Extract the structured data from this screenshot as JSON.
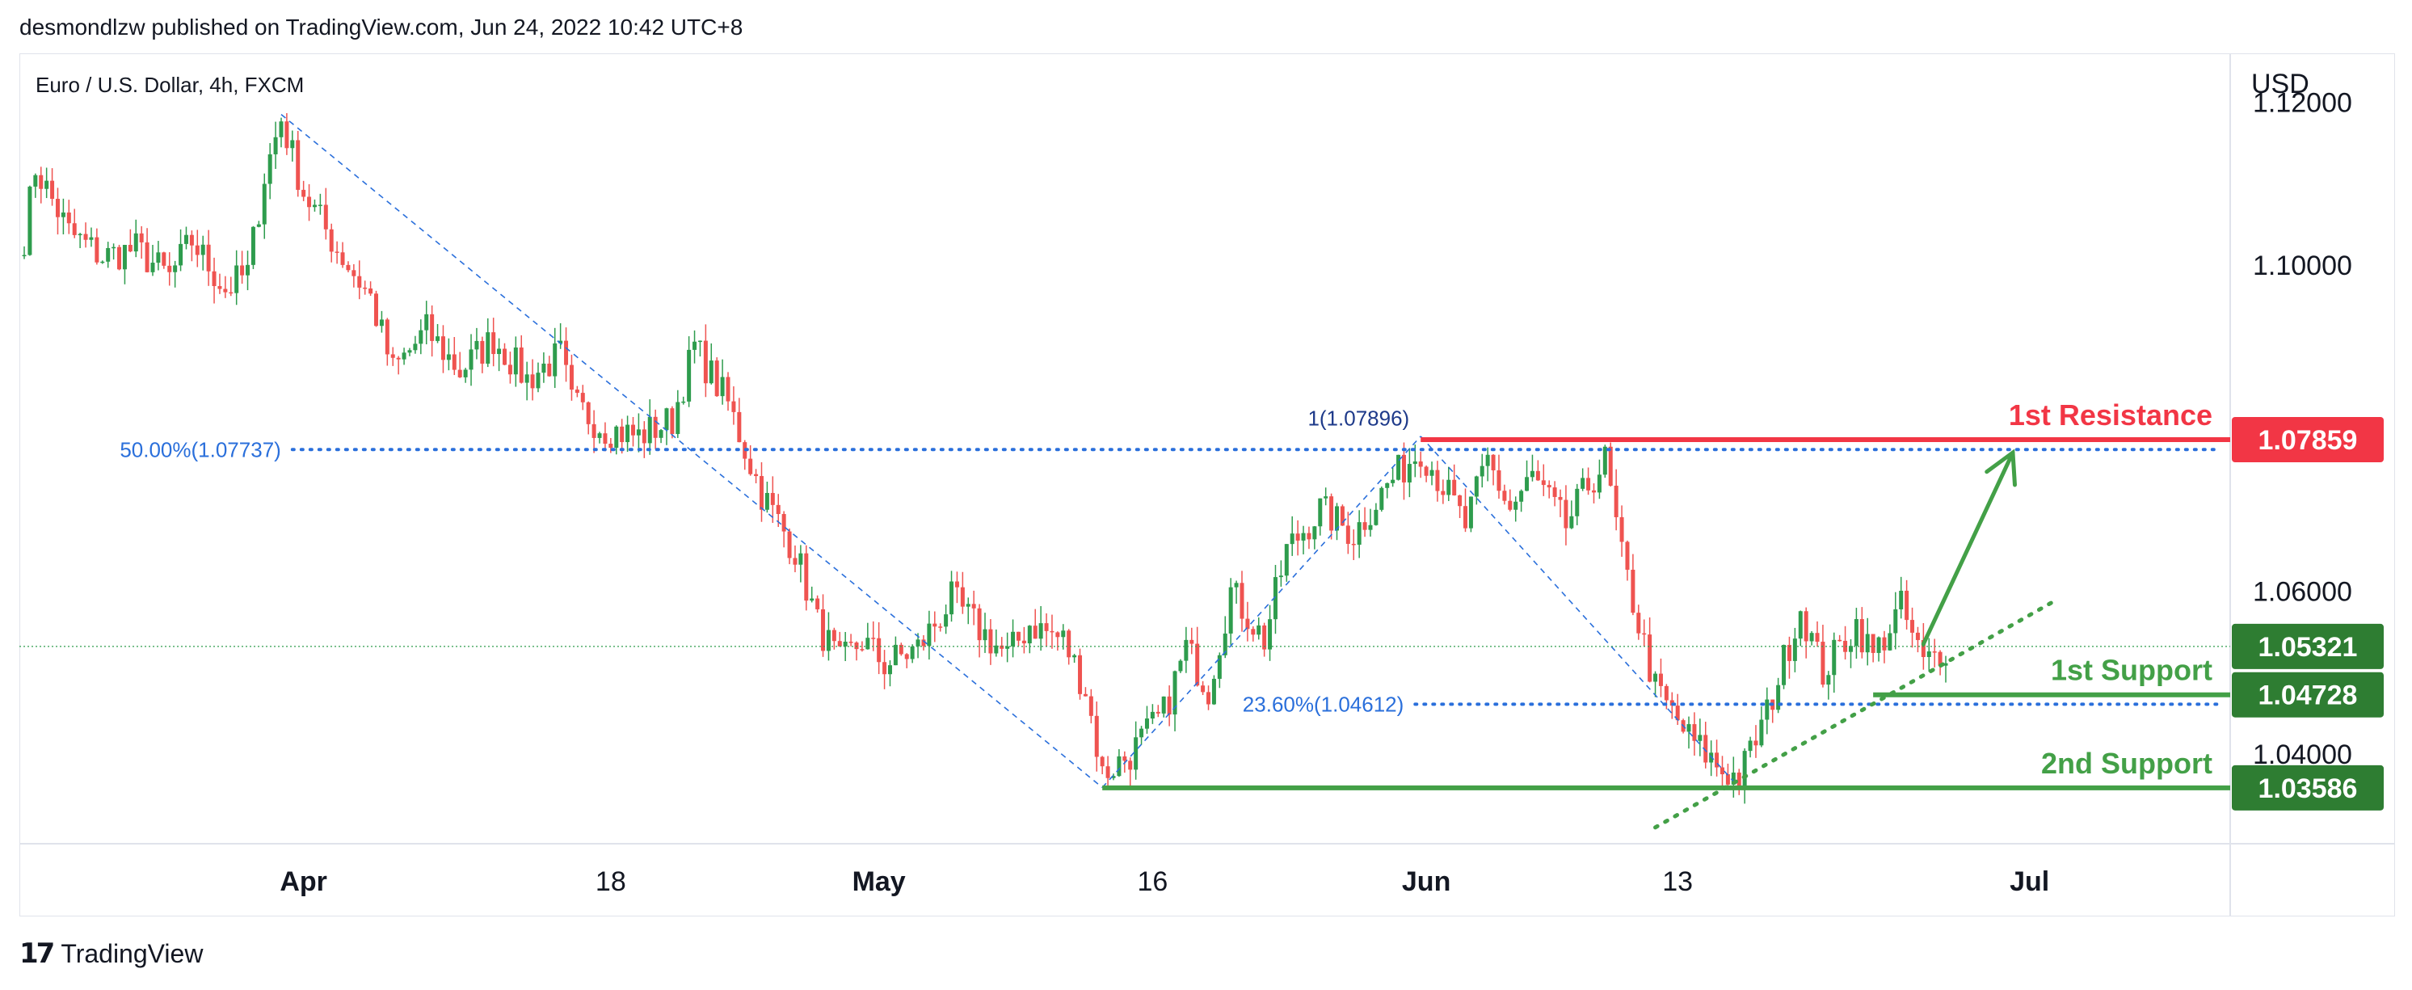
{
  "header": {
    "published_by": "desmondlzw published on TradingView.com, Jun 24, 2022 10:42 UTC+8"
  },
  "footer": {
    "brand": "TradingView"
  },
  "colors": {
    "up": "#26a69a",
    "up_chart": "#2e9c4d",
    "down": "#ef5350",
    "fib": "#2a6fdb",
    "resistance": "#f23645",
    "support": "#43a047",
    "axis_text": "#131722"
  },
  "chart_data": {
    "type": "candlestick",
    "symbol_label": "Euro / U.S. Dollar, 4h, FXCM",
    "currency_label": "USD",
    "ylim": [
      1.029,
      1.126
    ],
    "y_ticks": [
      "1.12000",
      "1.10000",
      "1.06000",
      "1.04000"
    ],
    "y_tick_values": [
      1.12,
      1.1,
      1.06,
      1.04
    ],
    "x_ticks": [
      "Apr",
      "18",
      "May",
      "16",
      "Jun",
      "13",
      "Jul"
    ],
    "x_tick_bars": [
      50,
      105,
      153,
      202,
      251,
      296,
      359
    ],
    "x_tick_bold": [
      true,
      false,
      true,
      false,
      true,
      false,
      true
    ],
    "last_price": 1.05321,
    "price_labels": [
      {
        "text": "1.07859",
        "value": 1.07859,
        "color": "#f23645"
      },
      {
        "text": "1.05321",
        "value": 1.05321,
        "color": "#2e7d32"
      },
      {
        "text": "1.04728",
        "value": 1.04728,
        "color": "#2e7d32"
      },
      {
        "text": "1.03586",
        "value": 1.03586,
        "color": "#2e7d32"
      }
    ],
    "levels": [
      {
        "name": "1st Resistance",
        "value": 1.07859,
        "color": "#f23645",
        "from_bar": 250
      },
      {
        "name": "1st Support",
        "value": 1.04728,
        "color": "#43a047",
        "from_bar": 331
      },
      {
        "name": "2nd Support",
        "value": 1.03586,
        "color": "#43a047",
        "from_bar": 193
      }
    ],
    "fib_labels": [
      {
        "text": "50.00%(1.07737)",
        "value": 1.07737,
        "from_bar": 48,
        "to_bar": 393
      },
      {
        "text": "23.60%(1.04612)",
        "value": 1.04612,
        "from_bar": 249,
        "to_bar": 393
      },
      {
        "text": "1(1.07896)",
        "value": 1.07896,
        "at_bar": 250
      }
    ],
    "fib_swings": [
      {
        "from_bar": 46,
        "from": 1.1185,
        "to_bar": 193,
        "to": 1.0359
      },
      {
        "from_bar": 193,
        "from": 1.0359,
        "to_bar": 250,
        "to": 1.079
      },
      {
        "from_bar": 250,
        "from": 1.079,
        "to_bar": 307,
        "to": 1.0359
      }
    ],
    "trendline": {
      "from_bar": 292,
      "from": 1.031,
      "to_bar": 364,
      "to": 1.059
    },
    "projection_arrow": {
      "from_bar": 340,
      "from": 1.0535,
      "to_bar": 356,
      "to": 1.077
    },
    "candles": {
      "count": 390,
      "anchors": [
        [
          0,
          1.1035
        ],
        [
          2,
          1.112
        ],
        [
          8,
          1.104
        ],
        [
          14,
          1.101
        ],
        [
          20,
          1.102
        ],
        [
          26,
          1.0985
        ],
        [
          30,
          1.103
        ],
        [
          36,
          1.097
        ],
        [
          40,
          1.099
        ],
        [
          43,
          1.111
        ],
        [
          46,
          1.118
        ],
        [
          50,
          1.109
        ],
        [
          56,
          1.102
        ],
        [
          62,
          1.096
        ],
        [
          66,
          1.087
        ],
        [
          72,
          1.092
        ],
        [
          78,
          1.087
        ],
        [
          84,
          1.091
        ],
        [
          90,
          1.086
        ],
        [
          96,
          1.089
        ],
        [
          98,
          1.083
        ],
        [
          104,
          1.08
        ],
        [
          110,
          1.079
        ],
        [
          116,
          1.081
        ],
        [
          120,
          1.09
        ],
        [
          126,
          1.083
        ],
        [
          132,
          1.072
        ],
        [
          138,
          1.065
        ],
        [
          142,
          1.056
        ],
        [
          146,
          1.051
        ],
        [
          150,
          1.054
        ],
        [
          154,
          1.051
        ],
        [
          160,
          1.053
        ],
        [
          166,
          1.059
        ],
        [
          170,
          1.056
        ],
        [
          176,
          1.052
        ],
        [
          180,
          1.056
        ],
        [
          186,
          1.054
        ],
        [
          190,
          1.048
        ],
        [
          193,
          1.0375
        ],
        [
          198,
          1.04
        ],
        [
          204,
          1.045
        ],
        [
          208,
          1.053
        ],
        [
          212,
          1.048
        ],
        [
          216,
          1.06
        ],
        [
          222,
          1.054
        ],
        [
          226,
          1.065
        ],
        [
          232,
          1.07
        ],
        [
          238,
          1.067
        ],
        [
          244,
          1.073
        ],
        [
          250,
          1.0775
        ],
        [
          254,
          1.073
        ],
        [
          258,
          1.068
        ],
        [
          262,
          1.076
        ],
        [
          266,
          1.07
        ],
        [
          270,
          1.074
        ],
        [
          276,
          1.068
        ],
        [
          280,
          1.073
        ],
        [
          283,
          1.076
        ],
        [
          286,
          1.064
        ],
        [
          292,
          1.048
        ],
        [
          298,
          1.042
        ],
        [
          304,
          1.038
        ],
        [
          307,
          1.037
        ],
        [
          312,
          1.045
        ],
        [
          318,
          1.058
        ],
        [
          322,
          1.05
        ],
        [
          328,
          1.056
        ],
        [
          331,
          1.052
        ],
        [
          336,
          1.058
        ],
        [
          340,
          1.051
        ],
        [
          344,
          1.0532
        ]
      ]
    }
  }
}
